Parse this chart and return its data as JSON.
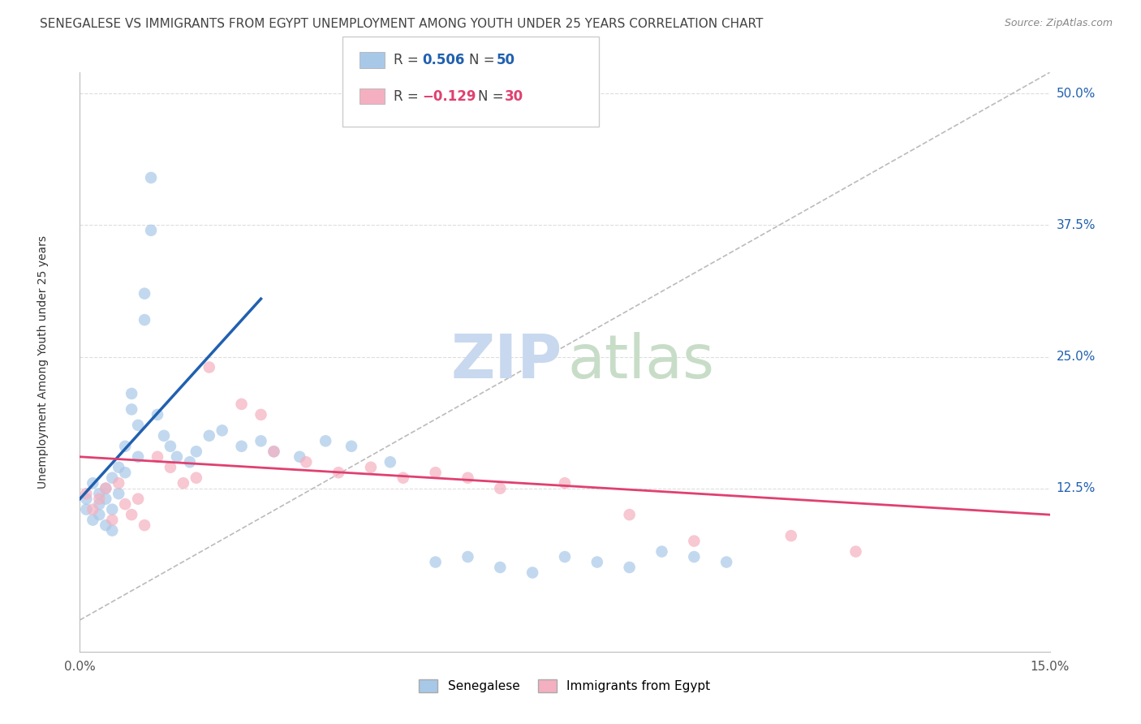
{
  "title": "SENEGALESE VS IMMIGRANTS FROM EGYPT UNEMPLOYMENT AMONG YOUTH UNDER 25 YEARS CORRELATION CHART",
  "source": "Source: ZipAtlas.com",
  "ylabel": "Unemployment Among Youth under 25 years",
  "xmin": 0.0,
  "xmax": 0.15,
  "ymin": -0.03,
  "ymax": 0.52,
  "ytick_positions": [
    0.125,
    0.25,
    0.375,
    0.5
  ],
  "ytick_labels": [
    "12.5%",
    "25.0%",
    "37.5%",
    "50.0%"
  ],
  "R_senegalese": 0.506,
  "N_senegalese": 50,
  "R_egypt": -0.129,
  "N_egypt": 30,
  "color_senegalese": "#a8c8e8",
  "color_egypt": "#f4b0c0",
  "line_color_senegalese": "#2060b0",
  "line_color_egypt": "#e04070",
  "diagonal_color": "#bbbbbb",
  "watermark_zip_color": "#c8d8ee",
  "watermark_atlas_color": "#c8ddc8",
  "background_color": "#ffffff",
  "grid_color": "#dddddd",
  "title_fontsize": 11,
  "scatter_alpha": 0.7,
  "scatter_size": 110,
  "senegalese_x": [
    0.001,
    0.001,
    0.002,
    0.002,
    0.003,
    0.003,
    0.003,
    0.004,
    0.004,
    0.004,
    0.005,
    0.005,
    0.005,
    0.006,
    0.006,
    0.007,
    0.007,
    0.008,
    0.008,
    0.009,
    0.009,
    0.01,
    0.01,
    0.011,
    0.011,
    0.012,
    0.013,
    0.014,
    0.015,
    0.017,
    0.018,
    0.02,
    0.022,
    0.025,
    0.028,
    0.03,
    0.034,
    0.038,
    0.042,
    0.048,
    0.055,
    0.06,
    0.065,
    0.07,
    0.075,
    0.08,
    0.085,
    0.09,
    0.095,
    0.1
  ],
  "senegalese_y": [
    0.115,
    0.105,
    0.13,
    0.095,
    0.12,
    0.11,
    0.1,
    0.125,
    0.09,
    0.115,
    0.135,
    0.105,
    0.085,
    0.145,
    0.12,
    0.165,
    0.14,
    0.2,
    0.215,
    0.185,
    0.155,
    0.285,
    0.31,
    0.37,
    0.42,
    0.195,
    0.175,
    0.165,
    0.155,
    0.15,
    0.16,
    0.175,
    0.18,
    0.165,
    0.17,
    0.16,
    0.155,
    0.17,
    0.165,
    0.15,
    0.055,
    0.06,
    0.05,
    0.045,
    0.06,
    0.055,
    0.05,
    0.065,
    0.06,
    0.055
  ],
  "egypt_x": [
    0.001,
    0.002,
    0.003,
    0.004,
    0.005,
    0.006,
    0.007,
    0.008,
    0.009,
    0.01,
    0.012,
    0.014,
    0.016,
    0.018,
    0.02,
    0.025,
    0.028,
    0.03,
    0.035,
    0.04,
    0.045,
    0.05,
    0.055,
    0.06,
    0.065,
    0.075,
    0.085,
    0.095,
    0.11,
    0.12
  ],
  "egypt_y": [
    0.12,
    0.105,
    0.115,
    0.125,
    0.095,
    0.13,
    0.11,
    0.1,
    0.115,
    0.09,
    0.155,
    0.145,
    0.13,
    0.135,
    0.24,
    0.205,
    0.195,
    0.16,
    0.15,
    0.14,
    0.145,
    0.135,
    0.14,
    0.135,
    0.125,
    0.13,
    0.1,
    0.075,
    0.08,
    0.065
  ],
  "trendline_s_x0": 0.0,
  "trendline_s_y0": 0.115,
  "trendline_s_x1": 0.028,
  "trendline_s_y1": 0.305,
  "trendline_e_x0": 0.0,
  "trendline_e_y0": 0.155,
  "trendline_e_x1": 0.15,
  "trendline_e_y1": 0.1
}
